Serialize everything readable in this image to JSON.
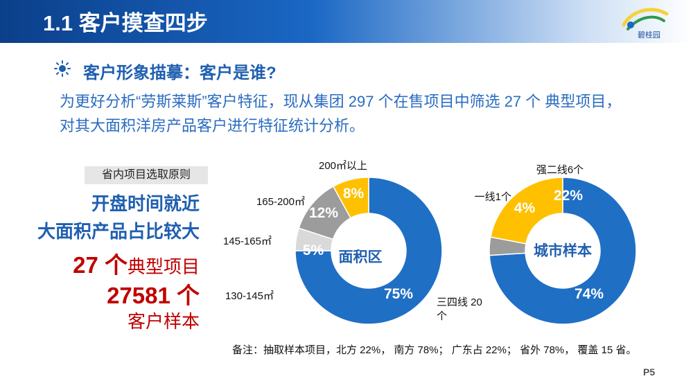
{
  "header": {
    "title": "1.1  客户摸查四步"
  },
  "logo": {
    "text": "碧桂园"
  },
  "subtitle": "客户形象描摹：客户是谁?",
  "intro": "为更好分析“劳斯莱斯”客户特征，现从集团 297 个在售项目中筛选 27 个 典型项目，对其大面积洋房产品客户进行特征统计分析。",
  "left": {
    "principle_label": "省内项目选取原则",
    "line1": "开盘时间就近",
    "line2": "大面积产品占比较大",
    "count_num": "27 个",
    "count_text": "典型项目",
    "sample_num": "27581 个",
    "sample_text": "客户样本"
  },
  "note": "备注：抽取样本项目，北方 22%， 南方 78%； 广东占 22%； 省外 78%， 覆盖 15 省。",
  "page": "P5",
  "colors": {
    "blue": "#1f6fc5",
    "gray": "#9c9c9c",
    "light_gray": "#d9d9d9",
    "gold": "#ffc000",
    "red": "#c00000",
    "title_blue": "#1f5fb0"
  },
  "chart_data": [
    {
      "type": "pie",
      "variant": "donut",
      "title": "面积区",
      "slices": [
        {
          "label": "130-145㎡",
          "value": 75,
          "value_label": "75%",
          "color": "#1f6fc5"
        },
        {
          "label": "145-165㎡",
          "value": 5,
          "value_label": "5%",
          "color": "#d9d9d9"
        },
        {
          "label": "165-200㎡",
          "value": 12,
          "value_label": "12%",
          "color": "#9c9c9c"
        },
        {
          "label": "200㎡以上",
          "value": 8,
          "value_label": "8%",
          "color": "#ffc000"
        }
      ]
    },
    {
      "type": "pie",
      "variant": "donut",
      "title": "城市样本",
      "slices": [
        {
          "label": "三四线 20 个",
          "value": 74,
          "value_label": "74%",
          "color": "#1f6fc5"
        },
        {
          "label": "一线1个",
          "value": 4,
          "value_label": "4%",
          "color": "#9c9c9c"
        },
        {
          "label": "强二线6个",
          "value": 22,
          "value_label": "22%",
          "color": "#ffc000"
        }
      ]
    }
  ]
}
